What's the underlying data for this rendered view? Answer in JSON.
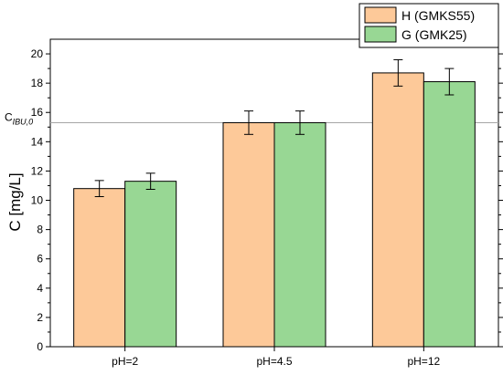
{
  "chart_data": {
    "type": "bar",
    "categories": [
      "pH=2",
      "pH=4.5",
      "pH=12"
    ],
    "series": [
      {
        "name": "H (GMKS55)",
        "values": [
          10.8,
          15.3,
          18.7
        ],
        "errors": [
          0.55,
          0.8,
          0.9
        ],
        "color": "#fdc999"
      },
      {
        "name": "G (GMK25)",
        "values": [
          11.3,
          15.3,
          18.1
        ],
        "errors": [
          0.55,
          0.8,
          0.9
        ],
        "color": "#98d794"
      }
    ],
    "ylabel": "C [mg/L]",
    "ylim": [
      0,
      21
    ],
    "yticks": [
      0,
      2,
      4,
      6,
      8,
      10,
      12,
      14,
      16,
      18,
      20
    ],
    "reference_line": {
      "value": 15.3,
      "label_main": "C",
      "label_sub": "IBU,0",
      "color": "#a6a6a6"
    },
    "grid": false,
    "legend_position": "top-right"
  }
}
